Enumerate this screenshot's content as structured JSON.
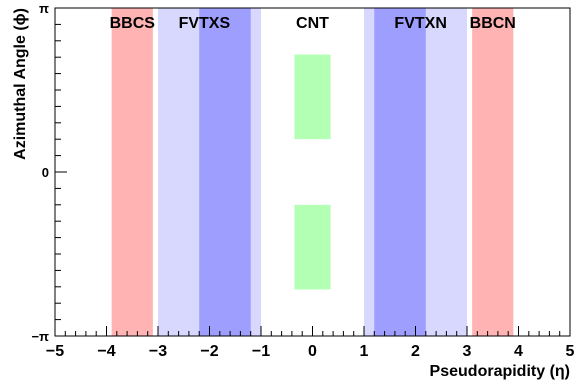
{
  "chart_data": {
    "type": "coverage-diagram",
    "xlabel": "Pseudorapidity (η)",
    "ylabel": "Azimuthal Angle (ϕ)",
    "xlim": [
      -5,
      5
    ],
    "ylim": [
      -3.14159,
      3.14159
    ],
    "x_ticks": [
      -5,
      -4,
      -3,
      -2,
      -1,
      0,
      1,
      2,
      3,
      4,
      5
    ],
    "y_ticks": [
      {
        "value": -3.14159,
        "label": "−π"
      },
      {
        "value": 0,
        "label": "0"
      },
      {
        "value": 3.14159,
        "label": "π"
      }
    ],
    "colors": {
      "bbc": "#ffb3b3",
      "fvtx_outer": "#d8d8ff",
      "fvtx_inner": "#9e9eff",
      "cnt": "#b3ffb3",
      "axis": "#000000"
    },
    "regions": [
      {
        "label": "BBCS",
        "x": [
          -3.9,
          -3.1
        ],
        "y": [
          -3.14159,
          3.14159
        ],
        "color": "bbc"
      },
      {
        "label": "FVTXS",
        "x": [
          -3.0,
          -1.0
        ],
        "y": [
          -3.14159,
          3.14159
        ],
        "color": "fvtx_outer",
        "labeled": true
      },
      {
        "label": "FVTXS-inner",
        "x": [
          -2.2,
          -1.2
        ],
        "y": [
          -3.14159,
          3.14159
        ],
        "color": "fvtx_inner",
        "labeled": false
      },
      {
        "label": "FVTXN",
        "x": [
          1.0,
          3.0
        ],
        "y": [
          -3.14159,
          3.14159
        ],
        "color": "fvtx_outer",
        "labeled": true
      },
      {
        "label": "FVTXN-inner",
        "x": [
          1.2,
          2.2
        ],
        "y": [
          -3.14159,
          3.14159
        ],
        "color": "fvtx_inner",
        "labeled": false
      },
      {
        "label": "BBCN",
        "x": [
          3.1,
          3.9
        ],
        "y": [
          -3.14159,
          3.14159
        ],
        "color": "bbc"
      },
      {
        "label": "CNT",
        "x": [
          -0.35,
          0.35
        ],
        "y": [
          0.63,
          2.25
        ],
        "color": "cnt"
      },
      {
        "label": "CNT-south",
        "x": [
          -0.35,
          0.35
        ],
        "y": [
          -2.25,
          -0.63
        ],
        "color": "cnt",
        "labeled": false
      }
    ],
    "region_labels": [
      {
        "text": "BBCS",
        "x": -3.5
      },
      {
        "text": "FVTXS",
        "x": -2.1
      },
      {
        "text": "CNT",
        "x": 0
      },
      {
        "text": "FVTXN",
        "x": 2.1
      },
      {
        "text": "BBCN",
        "x": 3.5
      }
    ]
  }
}
